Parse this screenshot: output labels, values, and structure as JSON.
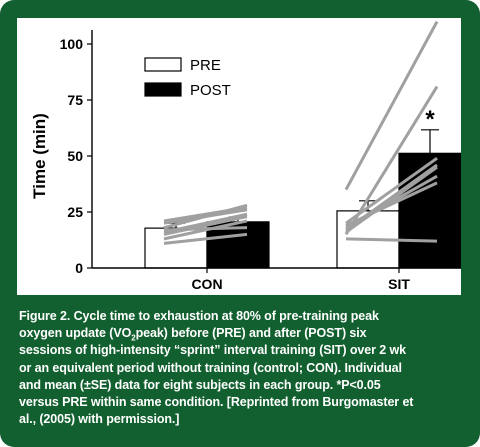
{
  "chart_data": {
    "type": "bar",
    "ylabel": "Time (min)",
    "ylim": [
      0,
      100
    ],
    "yticks": [
      0,
      25,
      50,
      75,
      100
    ],
    "categories": [
      "CON",
      "SIT"
    ],
    "series": [
      {
        "name": "PRE",
        "values": [
          17.8,
          25.5
        ],
        "se": [
          2.2,
          4.5
        ],
        "color": "#ffffff"
      },
      {
        "name": "POST",
        "values": [
          20.6,
          51.2
        ],
        "se": [
          2.2,
          10.5
        ],
        "color": "#000000"
      }
    ],
    "significance": [
      {
        "category": "SIT",
        "series": "POST",
        "label": "*"
      }
    ],
    "individual_lines": [
      {
        "category": "CON",
        "lines": [
          [
            13,
            21
          ],
          [
            15,
            23
          ],
          [
            16,
            24
          ],
          [
            17,
            18
          ],
          [
            18,
            28
          ],
          [
            20,
            26
          ],
          [
            21,
            27
          ],
          [
            11,
            15
          ]
        ]
      },
      {
        "category": "SIT",
        "lines": [
          [
            15,
            81
          ],
          [
            16,
            45
          ],
          [
            17,
            46
          ],
          [
            18,
            41
          ],
          [
            19,
            38
          ],
          [
            20,
            49
          ],
          [
            35,
            110
          ],
          [
            13,
            12
          ]
        ]
      }
    ],
    "legend_position": "top-left",
    "line_color": "#a0a0a0"
  },
  "caption": {
    "line1": "Figure 2. Cycle time to exhaustion at 80% of pre-training peak",
    "line2_a": "oxygen update (VO",
    "line2_sub": "2",
    "line2_b": "peak) before (PRE) and after (POST) six",
    "line3": "sessions of high-intensity “sprint” interval training (SIT) over 2 wk",
    "line4": "or an equivalent period without training (control; CON). Individual",
    "line5": "and mean (±SE) data for eight subjects in each group. *P<0.05",
    "line6": "versus PRE within same condition. [Reprinted from Burgomaster et",
    "line7": "al., (2005) with permission.]"
  },
  "colors": {
    "frame": "#12602f",
    "panel": "#ffffff"
  }
}
